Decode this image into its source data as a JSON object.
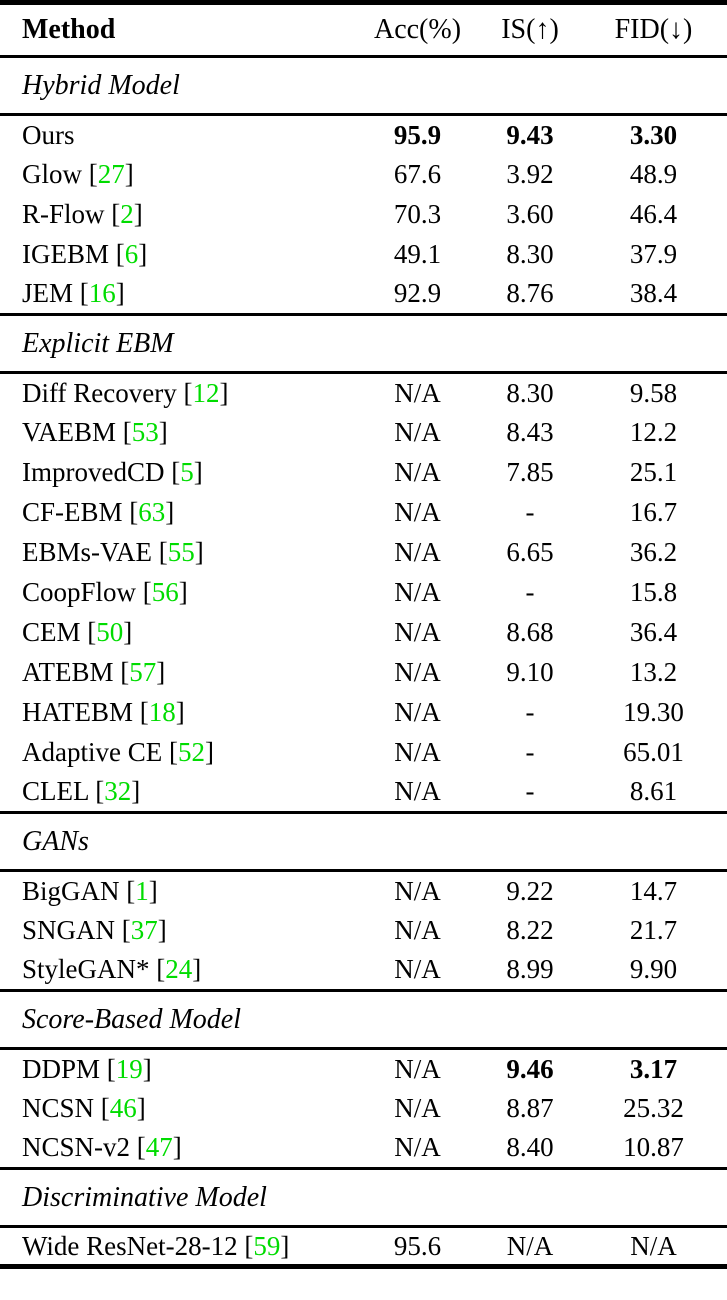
{
  "colors": {
    "citation": "#00dc00",
    "text": "#000000",
    "background": "#ffffff",
    "rule": "#000000"
  },
  "header": {
    "method": "Method",
    "acc": "Acc(%)",
    "is": "IS(↑)",
    "fid": "FID(↓)"
  },
  "sections": [
    {
      "label": "Hybrid Model",
      "rows": [
        {
          "name": "Ours",
          "ref": null,
          "acc": "95.9",
          "is": "9.43",
          "fid": "3.30",
          "bold": [
            "acc",
            "is",
            "fid"
          ]
        },
        {
          "name": "Glow",
          "ref": "27",
          "acc": "67.6",
          "is": "3.92",
          "fid": "48.9",
          "bold": []
        },
        {
          "name": "R-Flow",
          "ref": "2",
          "acc": "70.3",
          "is": "3.60",
          "fid": "46.4",
          "bold": []
        },
        {
          "name": "IGEBM",
          "ref": "6",
          "acc": "49.1",
          "is": "8.30",
          "fid": "37.9",
          "bold": []
        },
        {
          "name": "JEM",
          "ref": "16",
          "acc": "92.9",
          "is": "8.76",
          "fid": "38.4",
          "bold": []
        }
      ]
    },
    {
      "label": "Explicit EBM",
      "rows": [
        {
          "name": "Diff Recovery",
          "ref": "12",
          "acc": "N/A",
          "is": "8.30",
          "fid": "9.58",
          "bold": []
        },
        {
          "name": "VAEBM",
          "ref": "53",
          "acc": "N/A",
          "is": "8.43",
          "fid": "12.2",
          "bold": []
        },
        {
          "name": "ImprovedCD",
          "ref": "5",
          "acc": "N/A",
          "is": "7.85",
          "fid": "25.1",
          "bold": []
        },
        {
          "name": "CF-EBM",
          "ref": "63",
          "acc": "N/A",
          "is": "-",
          "fid": "16.7",
          "bold": []
        },
        {
          "name": "EBMs-VAE",
          "ref": "55",
          "acc": "N/A",
          "is": "6.65",
          "fid": "36.2",
          "bold": []
        },
        {
          "name": "CoopFlow",
          "ref": "56",
          "acc": "N/A",
          "is": "-",
          "fid": "15.8",
          "bold": []
        },
        {
          "name": "CEM",
          "ref": "50",
          "acc": "N/A",
          "is": "8.68",
          "fid": "36.4",
          "bold": []
        },
        {
          "name": "ATEBM",
          "ref": "57",
          "acc": "N/A",
          "is": "9.10",
          "fid": "13.2",
          "bold": []
        },
        {
          "name": "HATEBM",
          "ref": "18",
          "acc": "N/A",
          "is": "-",
          "fid": "19.30",
          "bold": []
        },
        {
          "name": "Adaptive CE",
          "ref": "52",
          "acc": "N/A",
          "is": "-",
          "fid": "65.01",
          "bold": []
        },
        {
          "name": "CLEL",
          "ref": "32",
          "acc": "N/A",
          "is": "-",
          "fid": "8.61",
          "bold": []
        }
      ]
    },
    {
      "label": "GANs",
      "rows": [
        {
          "name": "BigGAN",
          "ref": "1",
          "acc": "N/A",
          "is": "9.22",
          "fid": "14.7",
          "bold": []
        },
        {
          "name": "SNGAN",
          "ref": "37",
          "acc": "N/A",
          "is": "8.22",
          "fid": "21.7",
          "bold": []
        },
        {
          "name": "StyleGAN*",
          "ref": "24",
          "acc": "N/A",
          "is": "8.99",
          "fid": "9.90",
          "bold": []
        }
      ]
    },
    {
      "label": "Score-Based Model",
      "rows": [
        {
          "name": "DDPM",
          "ref": "19",
          "acc": "N/A",
          "is": "9.46",
          "fid": "3.17",
          "bold": [
            "is",
            "fid"
          ]
        },
        {
          "name": "NCSN",
          "ref": "46",
          "acc": "N/A",
          "is": "8.87",
          "fid": "25.32",
          "bold": []
        },
        {
          "name": "NCSN-v2",
          "ref": "47",
          "acc": "N/A",
          "is": "8.40",
          "fid": "10.87",
          "bold": []
        }
      ]
    },
    {
      "label": "Discriminative Model",
      "rows": [
        {
          "name": "Wide ResNet-28-12",
          "ref": "59",
          "acc": "95.6",
          "is": "N/A",
          "fid": "N/A",
          "bold": []
        }
      ]
    }
  ]
}
